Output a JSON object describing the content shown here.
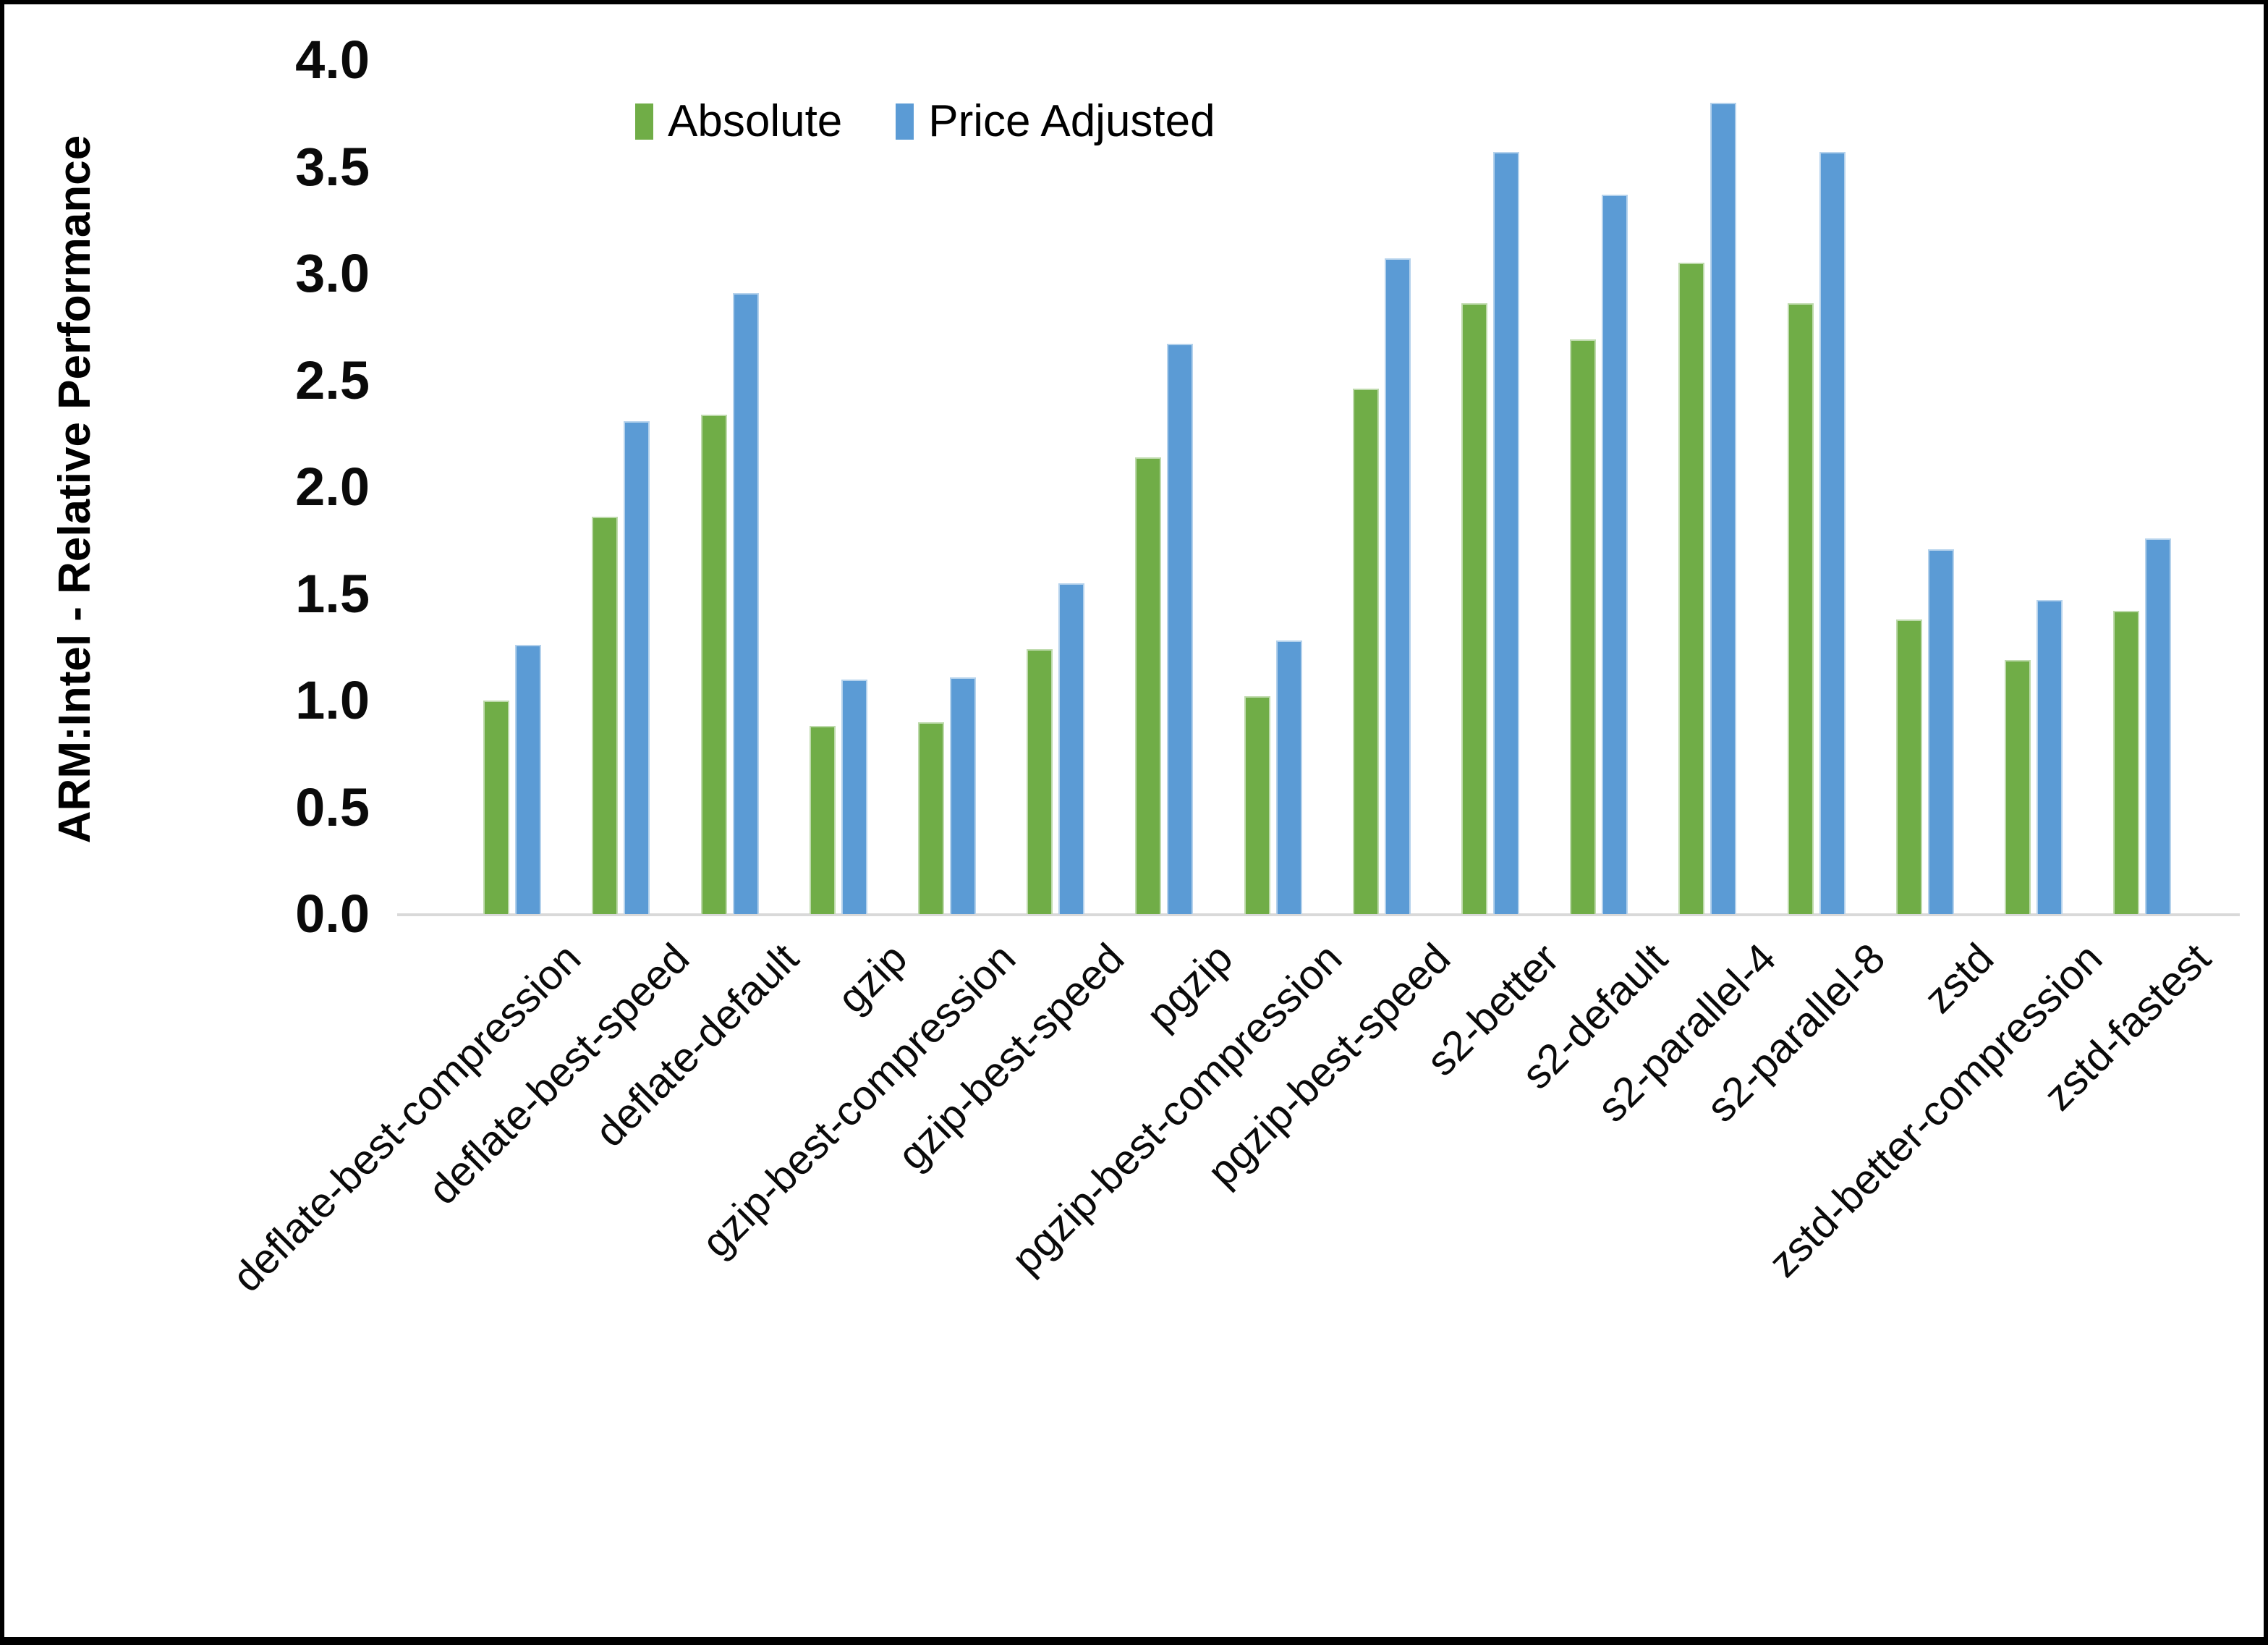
{
  "chart_data": {
    "type": "bar",
    "title": "",
    "xlabel": "",
    "ylabel": "ARM:Intel - Relative Performance",
    "ylim": [
      0.0,
      4.0
    ],
    "ytick_step": 0.5,
    "ytick_labels": [
      "0.0",
      "0.5",
      "1.0",
      "1.5",
      "2.0",
      "2.5",
      "3.0",
      "3.5",
      "4.0"
    ],
    "grid": false,
    "legend_position": "top",
    "categories": [
      "deflate-best-compression",
      "deflate-best-speed",
      "deflate-default",
      "gzip",
      "gzip-best-compression",
      "gzip-best-speed",
      "pgzip",
      "pgzip-best-compression",
      "pgzip-best-speed",
      "s2-better",
      "s2-default",
      "s2-parallel-4",
      "s2-parallel-8",
      "zstd",
      "zstd-better-compression",
      "zstd-fastest"
    ],
    "series": [
      {
        "name": "Absolute",
        "color": "#70AD47",
        "values": [
          1.0,
          1.86,
          2.34,
          0.88,
          0.9,
          1.24,
          2.14,
          1.02,
          2.46,
          2.86,
          2.69,
          3.05,
          2.86,
          1.38,
          1.19,
          1.42
        ]
      },
      {
        "name": "Price Adjusted",
        "color": "#5B9BD5",
        "values": [
          1.26,
          2.31,
          2.91,
          1.1,
          1.11,
          1.55,
          2.67,
          1.28,
          3.07,
          3.57,
          3.37,
          3.8,
          3.57,
          1.71,
          1.47,
          1.76
        ]
      }
    ],
    "axis_line_color": "#D9D9D9",
    "text_color": "#000000"
  }
}
